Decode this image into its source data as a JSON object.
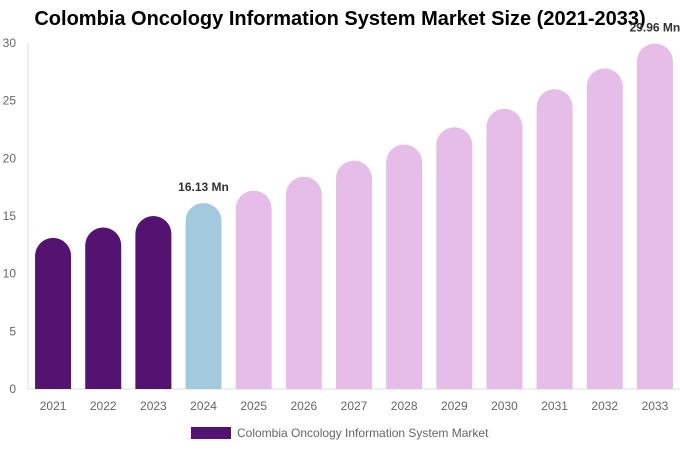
{
  "chart_data": {
    "type": "bar",
    "title": "Colombia Oncology Information System Market Size (2021-2033)",
    "categories": [
      "2021",
      "2022",
      "2023",
      "2024",
      "2025",
      "2026",
      "2027",
      "2028",
      "2029",
      "2030",
      "2031",
      "2032",
      "2033"
    ],
    "series": [
      {
        "name": "Colombia Oncology Information System Market",
        "values": [
          13.1,
          14.0,
          15.0,
          16.13,
          17.2,
          18.4,
          19.8,
          21.2,
          22.7,
          24.3,
          26.0,
          27.8,
          29.96
        ]
      }
    ],
    "data_labels": {
      "3": "16.13 Mn",
      "12": "29.96 Mn"
    },
    "ylim": [
      0,
      30
    ],
    "yticks": [
      0,
      5,
      10,
      15,
      20,
      25,
      30
    ],
    "grid": false,
    "legend": "bottom",
    "colors": {
      "historical": "#541271",
      "current": "#a3c9de",
      "forecast": "#e6bde8"
    },
    "bar_color_groups": [
      "historical",
      "historical",
      "historical",
      "current",
      "forecast",
      "forecast",
      "forecast",
      "forecast",
      "forecast",
      "forecast",
      "forecast",
      "forecast",
      "forecast"
    ]
  }
}
